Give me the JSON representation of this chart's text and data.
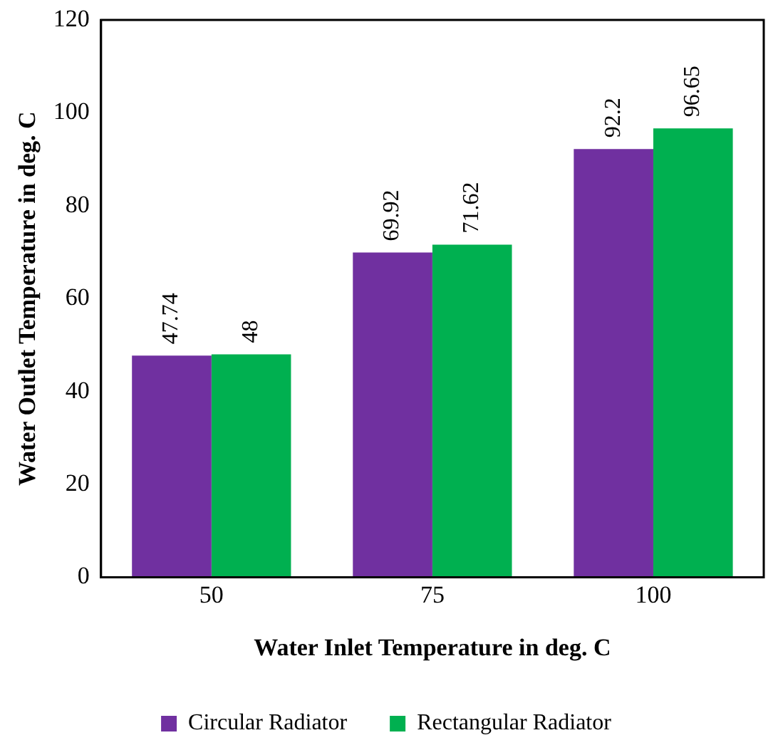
{
  "chart_data": {
    "type": "bar",
    "xlabel": "Water Inlet Temperature in deg. C",
    "ylabel": "Water Outlet Temperature in deg. C",
    "categories": [
      "50",
      "75",
      "100"
    ],
    "series": [
      {
        "name": "Circular Radiator",
        "color": "#7030a0",
        "values": [
          47.74,
          69.92,
          92.2
        ]
      },
      {
        "name": "Rectangular Radiator",
        "color": "#00b050",
        "values": [
          48,
          71.62,
          96.65
        ]
      }
    ],
    "ylim": [
      0,
      120
    ],
    "yticks": [
      0,
      20,
      40,
      60,
      80,
      100,
      120
    ],
    "grid": false,
    "legend": "bottom",
    "data_labels": true
  }
}
